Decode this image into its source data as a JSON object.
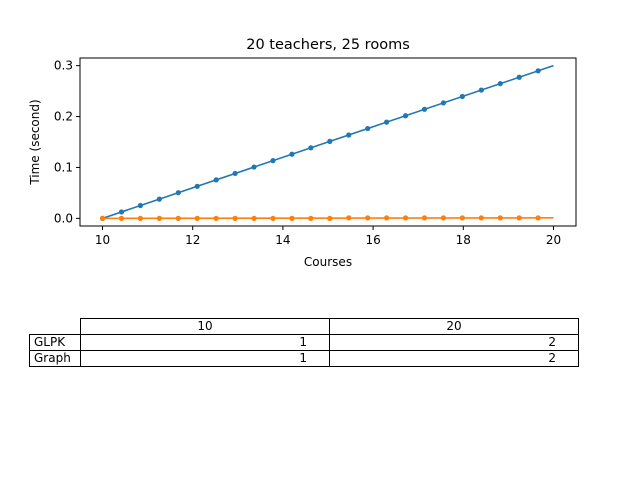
{
  "chart_data": {
    "type": "line",
    "title": "20 teachers, 25 rooms",
    "xlabel": "Courses",
    "ylabel": "Time (second)",
    "xlim": [
      9.5,
      20.5
    ],
    "ylim": [
      -0.015,
      0.315
    ],
    "xticks": [
      10,
      12,
      14,
      16,
      18,
      20
    ],
    "xtick_labels": [
      "10",
      "12",
      "14",
      "16",
      "18",
      "20"
    ],
    "yticks": [
      0.0,
      0.1,
      0.2,
      0.3
    ],
    "ytick_labels": [
      "0.0",
      "0.1",
      "0.2",
      "0.3"
    ],
    "grid": false,
    "series": [
      {
        "color": "#1f77b4",
        "line": {
          "x": [
            10,
            20
          ],
          "y": [
            0.0,
            0.3
          ]
        },
        "points": {
          "x": [
            10.0,
            10.42,
            10.84,
            11.26,
            11.68,
            12.1,
            12.52,
            12.94,
            13.36,
            13.78,
            14.2,
            14.62,
            15.04,
            15.46,
            15.88,
            16.3,
            16.72,
            17.14,
            17.56,
            17.98,
            18.4,
            18.82,
            19.24,
            19.66
          ],
          "y": [
            0.0,
            0.0126,
            0.0252,
            0.0378,
            0.0504,
            0.063,
            0.0756,
            0.0882,
            0.1008,
            0.1134,
            0.126,
            0.1386,
            0.1512,
            0.1638,
            0.1764,
            0.189,
            0.2016,
            0.2142,
            0.2268,
            0.2394,
            0.252,
            0.2646,
            0.2772,
            0.2898
          ]
        }
      },
      {
        "color": "#ff7f0e",
        "line": {
          "x": [
            10,
            20
          ],
          "y": [
            0.0,
            0.001
          ]
        },
        "points": {
          "x": [
            10.0,
            10.42,
            10.84,
            11.26,
            11.68,
            12.1,
            12.52,
            12.94,
            13.36,
            13.78,
            14.2,
            14.62,
            15.04,
            15.46,
            15.88,
            16.3,
            16.72,
            17.14,
            17.56,
            17.98,
            18.4,
            18.82,
            19.24,
            19.66
          ],
          "y": [
            0.0,
            0.0,
            0.0,
            0.0,
            0.0,
            0.0,
            0.0,
            0.0,
            0.0,
            0.0,
            0.0,
            0.0,
            0.0,
            0.001,
            0.001,
            0.001,
            0.001,
            0.001,
            0.001,
            0.001,
            0.001,
            0.001,
            0.001,
            0.001
          ]
        }
      }
    ]
  },
  "table": {
    "columns": [
      "10",
      "20"
    ],
    "rows": [
      {
        "label": "GLPK",
        "values": [
          "1",
          "2"
        ]
      },
      {
        "label": "Graph",
        "values": [
          "1",
          "2"
        ]
      }
    ]
  }
}
